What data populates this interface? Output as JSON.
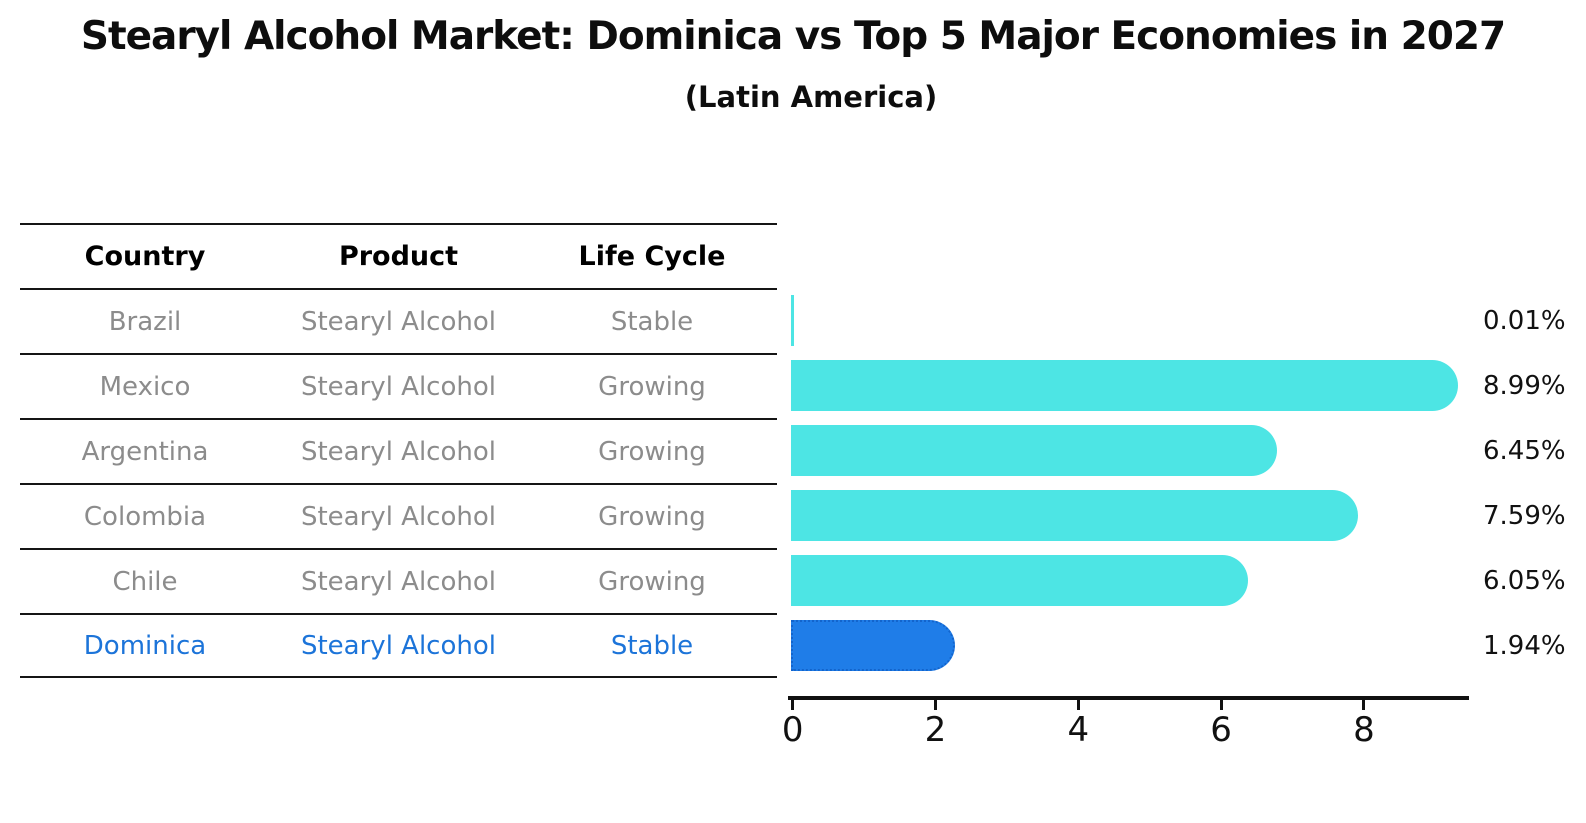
{
  "title": "Stearyl Alcohol Market: Dominica vs Top 5 Major Economies in 2027",
  "subtitle": "(Latin America)",
  "table": {
    "headers": [
      "Country",
      "Product",
      "Life Cycle"
    ],
    "rows": [
      {
        "country": "Brazil",
        "product": "Stearyl Alcohol",
        "life_cycle": "Stable",
        "highlight": false
      },
      {
        "country": "Mexico",
        "product": "Stearyl Alcohol",
        "life_cycle": "Growing",
        "highlight": false
      },
      {
        "country": "Argentina",
        "product": "Stearyl Alcohol",
        "life_cycle": "Growing",
        "highlight": false
      },
      {
        "country": "Colombia",
        "product": "Stearyl Alcohol",
        "life_cycle": "Growing",
        "highlight": false
      },
      {
        "country": "Chile",
        "product": "Stearyl Alcohol",
        "life_cycle": "Growing",
        "highlight": false
      },
      {
        "country": "Dominica",
        "product": "Stearyl Alcohol",
        "life_cycle": "Stable",
        "highlight": true
      }
    ]
  },
  "chart_data": {
    "type": "bar",
    "orientation": "horizontal",
    "title": "Stearyl Alcohol Market: Dominica vs Top 5 Major Economies in 2027",
    "subtitle": "(Latin America)",
    "categories": [
      "Brazil",
      "Mexico",
      "Argentina",
      "Colombia",
      "Chile",
      "Dominica"
    ],
    "values": [
      0.01,
      8.99,
      6.45,
      7.59,
      6.05,
      1.94
    ],
    "value_labels": [
      "0.01%",
      "8.99%",
      "6.45%",
      "7.59%",
      "6.05%",
      "1.94%"
    ],
    "x_ticks": [
      0,
      2,
      4,
      6,
      8
    ],
    "xlim": [
      0,
      9.47
    ],
    "grid": false,
    "legend": "none",
    "highlight_index": 5
  },
  "colors": {
    "bar": "#4DE5E4",
    "highlight_bar": "#1F7DE8",
    "highlight_border": "#1364CC",
    "highlight_text": "#1C74D9",
    "table_text": "#8C8C8C",
    "header_text": "#000000",
    "axis": "#111111"
  }
}
